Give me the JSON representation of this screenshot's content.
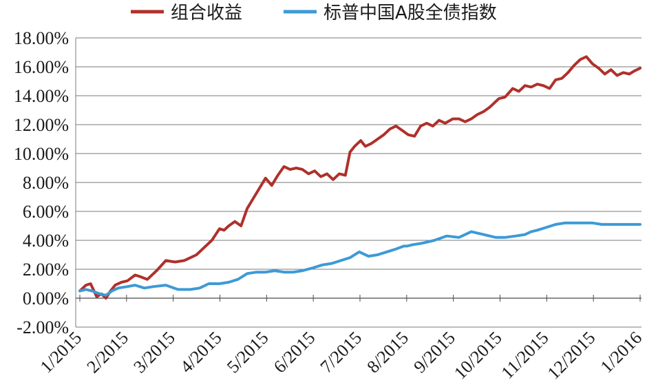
{
  "chart_data": {
    "type": "line",
    "title": "",
    "xlabel": "",
    "ylabel": "",
    "x_ticks": [
      "1/2015",
      "2/2015",
      "3/2015",
      "4/2015",
      "5/2015",
      "6/2015",
      "7/2015",
      "8/2015",
      "9/2015",
      "10/2015",
      "11/2015",
      "12/2015",
      "1/2016"
    ],
    "y_ticks": [
      "-2.00%",
      "0.00%",
      "2.00%",
      "4.00%",
      "6.00%",
      "8.00%",
      "10.00%",
      "12.00%",
      "14.00%",
      "16.00%",
      "18.00%"
    ],
    "ylim": [
      -2,
      18
    ],
    "y_unit": "%",
    "grid": "horizontal",
    "legend_position": "top",
    "series": [
      {
        "name": "组合收益",
        "color": "#b0302b",
        "x": [
          "2015-01-01",
          "2015-01-05",
          "2015-01-08",
          "2015-01-12",
          "2015-01-15",
          "2015-01-18",
          "2015-01-21",
          "2015-01-24",
          "2015-01-28",
          "2015-02-01",
          "2015-02-06",
          "2015-02-09",
          "2015-02-14",
          "2015-02-20",
          "2015-02-26",
          "2015-03-04",
          "2015-03-10",
          "2015-03-14",
          "2015-03-18",
          "2015-03-22",
          "2015-03-28",
          "2015-04-02",
          "2015-04-05",
          "2015-04-08",
          "2015-04-12",
          "2015-04-16",
          "2015-04-20",
          "2015-04-24",
          "2015-04-28",
          "2015-05-02",
          "2015-05-06",
          "2015-05-10",
          "2015-05-14",
          "2015-05-18",
          "2015-05-22",
          "2015-05-26",
          "2015-05-30",
          "2015-06-03",
          "2015-06-07",
          "2015-06-11",
          "2015-06-15",
          "2015-06-19",
          "2015-06-23",
          "2015-06-26",
          "2015-06-29",
          "2015-07-02",
          "2015-07-03",
          "2015-07-06",
          "2015-07-10",
          "2015-07-14",
          "2015-07-18",
          "2015-07-22",
          "2015-07-26",
          "2015-07-30",
          "2015-08-03",
          "2015-08-07",
          "2015-08-11",
          "2015-08-15",
          "2015-08-19",
          "2015-08-23",
          "2015-08-27",
          "2015-09-01",
          "2015-09-05",
          "2015-09-09",
          "2015-09-13",
          "2015-09-17",
          "2015-09-21",
          "2015-09-25",
          "2015-10-01",
          "2015-10-05",
          "2015-10-10",
          "2015-10-14",
          "2015-10-18",
          "2015-10-22",
          "2015-10-26",
          "2015-10-30",
          "2015-11-03",
          "2015-11-07",
          "2015-11-11",
          "2015-11-15",
          "2015-11-19",
          "2015-11-23",
          "2015-11-27",
          "2015-12-01",
          "2015-12-05",
          "2015-12-09",
          "2015-12-13",
          "2015-12-17",
          "2015-12-21",
          "2015-12-25",
          "2015-12-28",
          "2016-01-01"
        ],
        "values": [
          0.5,
          0.9,
          1.0,
          0.1,
          0.3,
          0.0,
          0.5,
          0.9,
          1.1,
          1.2,
          1.6,
          1.5,
          1.3,
          1.9,
          2.6,
          2.5,
          2.6,
          2.8,
          3.0,
          3.4,
          4.0,
          4.8,
          4.7,
          5.0,
          5.3,
          5.0,
          6.2,
          6.9,
          7.6,
          8.3,
          7.8,
          8.5,
          9.1,
          8.9,
          9.0,
          8.9,
          8.6,
          8.8,
          8.4,
          8.6,
          8.2,
          8.6,
          8.5,
          10.1,
          10.5,
          10.8,
          10.9,
          10.5,
          10.7,
          11.0,
          11.3,
          11.7,
          11.9,
          11.6,
          11.3,
          11.2,
          11.9,
          12.1,
          11.9,
          12.3,
          12.1,
          12.4,
          12.4,
          12.2,
          12.4,
          12.7,
          12.9,
          13.2,
          13.8,
          13.9,
          14.5,
          14.3,
          14.7,
          14.6,
          14.8,
          14.7,
          14.5,
          15.1,
          15.2,
          15.6,
          16.1,
          16.5,
          16.7,
          16.2,
          15.9,
          15.5,
          15.8,
          15.4,
          15.6,
          15.5,
          15.7,
          15.9
        ]
      },
      {
        "name": "标普中国A股全债指数",
        "color": "#3d9ad6",
        "x": [
          "2015-01-01",
          "2015-01-05",
          "2015-01-09",
          "2015-01-14",
          "2015-01-18",
          "2015-01-22",
          "2015-01-26",
          "2015-02-01",
          "2015-02-06",
          "2015-02-12",
          "2015-02-18",
          "2015-02-26",
          "2015-03-06",
          "2015-03-14",
          "2015-03-20",
          "2015-03-26",
          "2015-04-02",
          "2015-04-08",
          "2015-04-14",
          "2015-04-20",
          "2015-04-26",
          "2015-05-02",
          "2015-05-08",
          "2015-05-14",
          "2015-05-20",
          "2015-05-26",
          "2015-06-02",
          "2015-06-08",
          "2015-06-14",
          "2015-06-20",
          "2015-06-26",
          "2015-07-02",
          "2015-07-08",
          "2015-07-14",
          "2015-07-20",
          "2015-07-26",
          "2015-07-31",
          "2015-08-02",
          "2015-08-06",
          "2015-08-12",
          "2015-08-20",
          "2015-08-28",
          "2015-09-05",
          "2015-09-13",
          "2015-09-21",
          "2015-09-29",
          "2015-10-05",
          "2015-10-12",
          "2015-10-18",
          "2015-10-22",
          "2015-10-26",
          "2015-11-01",
          "2015-11-07",
          "2015-11-13",
          "2015-11-19",
          "2015-11-25",
          "2015-12-01",
          "2015-12-07",
          "2015-12-13",
          "2015-12-19",
          "2015-12-25",
          "2016-01-01"
        ],
        "values": [
          0.5,
          0.6,
          0.5,
          0.3,
          0.2,
          0.5,
          0.7,
          0.8,
          0.9,
          0.7,
          0.8,
          0.9,
          0.6,
          0.6,
          0.7,
          1.0,
          1.0,
          1.1,
          1.3,
          1.7,
          1.8,
          1.8,
          1.9,
          1.8,
          1.8,
          1.9,
          2.1,
          2.3,
          2.4,
          2.6,
          2.8,
          3.2,
          2.9,
          3.0,
          3.2,
          3.4,
          3.6,
          3.6,
          3.7,
          3.8,
          4.0,
          4.3,
          4.2,
          4.6,
          4.4,
          4.2,
          4.2,
          4.3,
          4.4,
          4.6,
          4.7,
          4.9,
          5.1,
          5.2,
          5.2,
          5.2,
          5.2,
          5.1,
          5.1,
          5.1,
          5.1,
          5.1
        ]
      }
    ]
  }
}
